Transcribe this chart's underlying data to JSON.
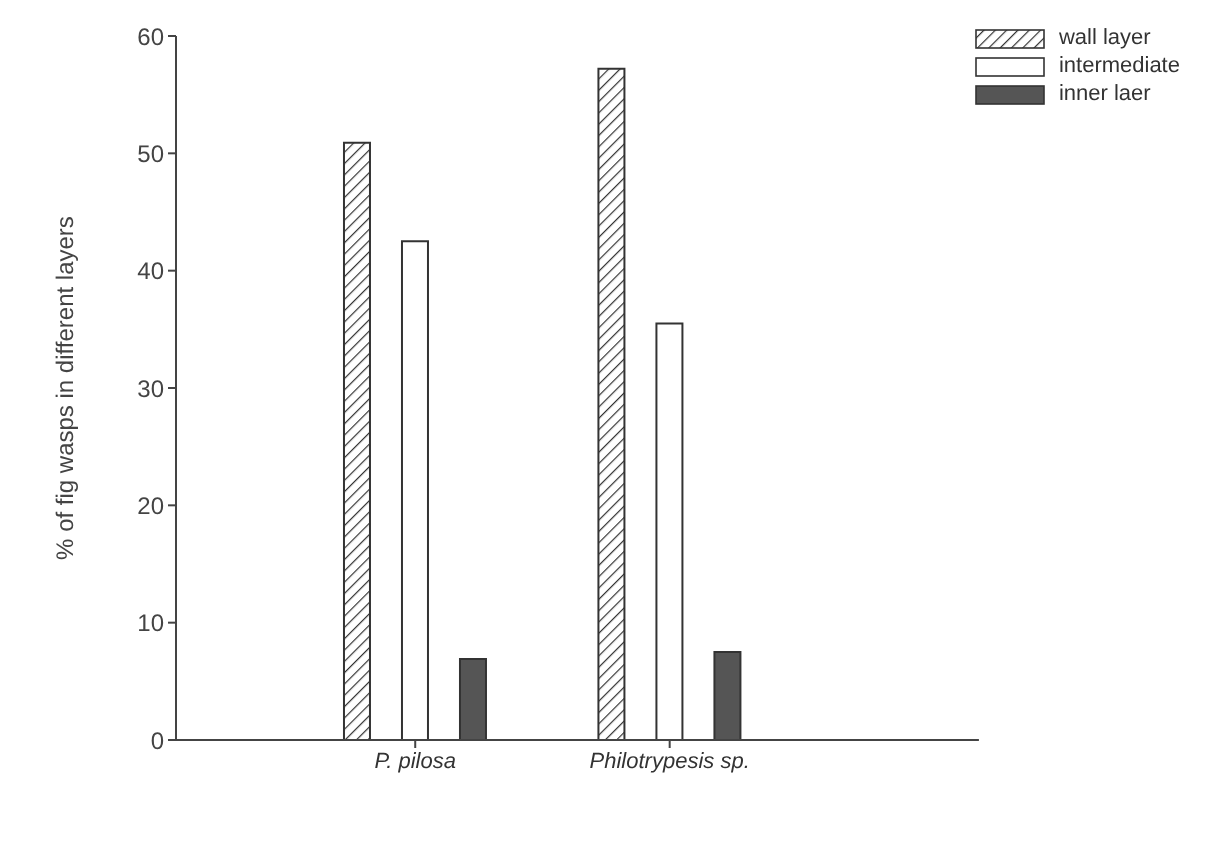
{
  "chart_data": {
    "type": "bar",
    "ylabel": "% of fig wasps in different layers",
    "categories": [
      "P. pilosa",
      "Philotrypesis sp."
    ],
    "series": [
      {
        "name": "wall layer",
        "color": "#333333",
        "values": [
          50.9,
          57.2
        ]
      },
      {
        "name": "intermediate",
        "color": "#ffffff",
        "values": [
          42.5,
          35.5
        ]
      },
      {
        "name": "inner laer",
        "color": "#555555",
        "values": [
          6.9,
          7.5
        ]
      }
    ],
    "ylim": [
      0,
      60
    ],
    "yticks": [
      0,
      10,
      20,
      30,
      40,
      50,
      60
    ],
    "grid": false,
    "legend": "top right"
  }
}
